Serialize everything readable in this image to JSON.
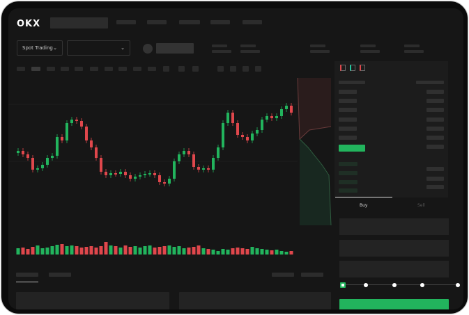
{
  "header": {
    "logo": "OKX"
  },
  "toolbar": {
    "market_type": "Spot Trading",
    "pair_select": ""
  },
  "orderbook": {
    "view_icons": [
      "orderbook-both-icon",
      "orderbook-bids-icon",
      "orderbook-asks-icon"
    ]
  },
  "trade": {
    "buy_tab": "Buy",
    "sell_tab": "Sell",
    "slider_percent": 0
  },
  "colors": {
    "up": "#22b45d",
    "down": "#e0474c",
    "background": "#161616"
  },
  "chart_data": {
    "type": "candlestick",
    "close": [
      95,
      90,
      85,
      68,
      70,
      75,
      85,
      88,
      115,
      110,
      135,
      140,
      138,
      130,
      110,
      100,
      85,
      65,
      60,
      63,
      62,
      65,
      60,
      55,
      58,
      60,
      62,
      63,
      60,
      50,
      48,
      55,
      80,
      90,
      95,
      90,
      72,
      68,
      70,
      68,
      85,
      100,
      135,
      150,
      135,
      118,
      115,
      110,
      120,
      125,
      140,
      145,
      142,
      145,
      155,
      160,
      150
    ],
    "volume": [
      9,
      10,
      8,
      11,
      13,
      9,
      10,
      12,
      14,
      15,
      12,
      13,
      12,
      10,
      11,
      12,
      10,
      12,
      18,
      13,
      12,
      10,
      13,
      11,
      12,
      10,
      12,
      13,
      10,
      11,
      12,
      13,
      11,
      12,
      9,
      10,
      11,
      13,
      9,
      8,
      7,
      5,
      8,
      7,
      9,
      10,
      9,
      8,
      11,
      9,
      8,
      7,
      6,
      7,
      5,
      4,
      5
    ]
  }
}
